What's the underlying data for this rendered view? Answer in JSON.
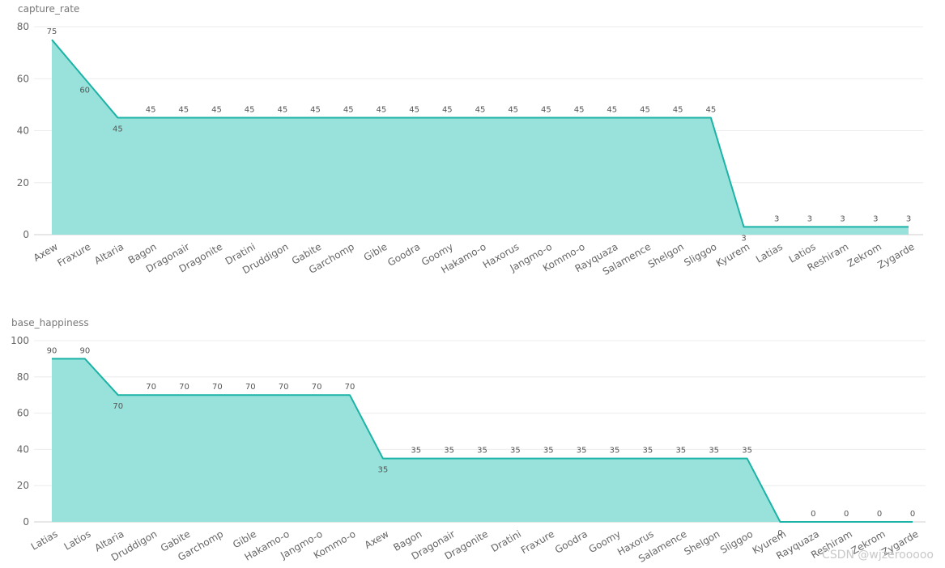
{
  "chart_data": [
    {
      "type": "area",
      "ylabel": "capture_rate",
      "ylim": [
        0,
        80
      ],
      "yticks": [
        0,
        20,
        40,
        60,
        80
      ],
      "grid": true,
      "categories": [
        "Axew",
        "Fraxure",
        "Altaria",
        "Bagon",
        "Dragonair",
        "Dragonite",
        "Dratini",
        "Druddigon",
        "Gabite",
        "Garchomp",
        "Gible",
        "Goodra",
        "Goomy",
        "Hakamo-o",
        "Haxorus",
        "Jangmo-o",
        "Kommo-o",
        "Rayquaza",
        "Salamence",
        "Shelgon",
        "Sliggoo",
        "Kyurem",
        "Latias",
        "Latios",
        "Reshiram",
        "Zekrom",
        "Zygarde"
      ],
      "values": [
        75,
        60,
        45,
        45,
        45,
        45,
        45,
        45,
        45,
        45,
        45,
        45,
        45,
        45,
        45,
        45,
        45,
        45,
        45,
        45,
        45,
        3,
        3,
        3,
        3,
        3,
        3
      ],
      "colors": {
        "line": "#1ab3a6",
        "fill": "#99e2db"
      }
    },
    {
      "type": "area",
      "ylabel": "base_happiness",
      "ylim": [
        0,
        100
      ],
      "yticks": [
        0,
        20,
        40,
        60,
        80,
        100
      ],
      "grid": true,
      "categories": [
        "Latias",
        "Latios",
        "Altaria",
        "Druddigon",
        "Gabite",
        "Garchomp",
        "Gible",
        "Hakamo-o",
        "Jangmo-o",
        "Kommo-o",
        "Axew",
        "Bagon",
        "Dragonair",
        "Dragonite",
        "Dratini",
        "Fraxure",
        "Goodra",
        "Goomy",
        "Haxorus",
        "Salamence",
        "Shelgon",
        "Sliggoo",
        "Kyurem",
        "Rayquaza",
        "Reshiram",
        "Zekrom",
        "Zygarde"
      ],
      "values": [
        90,
        90,
        70,
        70,
        70,
        70,
        70,
        70,
        70,
        70,
        35,
        35,
        35,
        35,
        35,
        35,
        35,
        35,
        35,
        35,
        35,
        35,
        0,
        0,
        0,
        0,
        0
      ],
      "colors": {
        "line": "#1ab3a6",
        "fill": "#99e2db"
      }
    }
  ],
  "watermark": "CSDN @wjzerooooo"
}
